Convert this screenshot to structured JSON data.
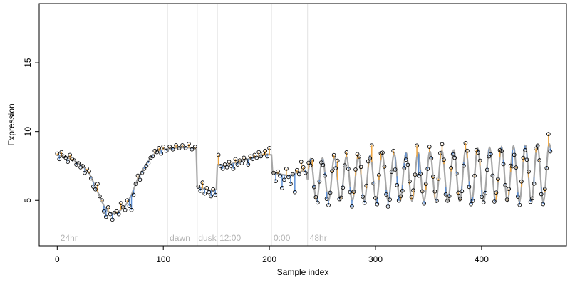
{
  "chart_data": {
    "type": "scatter",
    "xlabel": "Sample index",
    "ylabel": "Expression",
    "xlim": [
      -17,
      480
    ],
    "ylim": [
      1.7,
      19.3
    ],
    "x_ticks": [
      0,
      100,
      200,
      300,
      400
    ],
    "y_ticks": [
      5,
      10,
      15
    ],
    "grid": false,
    "legend": "none",
    "region_boundaries": [
      104,
      132,
      151,
      202,
      236
    ],
    "region_labels": [
      {
        "x": 3,
        "label": "24hr"
      },
      {
        "x": 106,
        "label": "dawn"
      },
      {
        "x": 133,
        "label": "dusk"
      },
      {
        "x": 153,
        "label": "12:00"
      },
      {
        "x": 204,
        "label": "0:00"
      },
      {
        "x": 238,
        "label": "48hr"
      }
    ],
    "fit_curve": [
      [
        0,
        8.3
      ],
      [
        8,
        8.15
      ],
      [
        16,
        7.9
      ],
      [
        24,
        7.5
      ],
      [
        30,
        7.0
      ],
      [
        36,
        6.0
      ],
      [
        40,
        5.3
      ],
      [
        44,
        4.6
      ],
      [
        48,
        4.2
      ],
      [
        52,
        4.05
      ],
      [
        56,
        4.1
      ],
      [
        60,
        4.3
      ],
      [
        65,
        4.7
      ],
      [
        70,
        5.4
      ],
      [
        76,
        6.6
      ],
      [
        82,
        7.4
      ],
      [
        88,
        8.1
      ],
      [
        94,
        8.55
      ],
      [
        100,
        8.7
      ],
      [
        110,
        8.8
      ],
      [
        120,
        8.85
      ],
      [
        128,
        8.8
      ],
      [
        131,
        8.7
      ],
      [
        132,
        6.0
      ],
      [
        136,
        5.9
      ],
      [
        140,
        5.8
      ],
      [
        146,
        5.7
      ],
      [
        150,
        5.8
      ],
      [
        151,
        7.6
      ],
      [
        156,
        7.5
      ],
      [
        162,
        7.6
      ],
      [
        170,
        7.8
      ],
      [
        180,
        8.0
      ],
      [
        190,
        8.2
      ],
      [
        198,
        8.35
      ],
      [
        202,
        8.3
      ],
      [
        203,
        7.0
      ],
      [
        210,
        6.9
      ],
      [
        218,
        6.8
      ],
      [
        226,
        7.0
      ],
      [
        234,
        7.2
      ]
    ],
    "oscillation": {
      "start": 236,
      "end": 465,
      "period": 11.25,
      "center_start": 6.5,
      "center_end": 7.0,
      "amplitude_start": 1.5,
      "amplitude_end": 2.1
    },
    "series": [
      {
        "name": "",
        "points": [
          [
            0,
            8.4
          ],
          [
            2,
            8.0
          ],
          [
            4,
            8.5
          ],
          [
            6,
            8.2
          ],
          [
            8,
            8.1
          ],
          [
            10,
            7.8
          ],
          [
            12,
            8.3
          ],
          [
            14,
            8.0
          ],
          [
            16,
            7.9
          ],
          [
            18,
            7.6
          ],
          [
            20,
            7.7
          ],
          [
            22,
            7.4
          ],
          [
            24,
            7.5
          ],
          [
            26,
            7.0
          ],
          [
            28,
            7.3
          ],
          [
            30,
            7.1
          ],
          [
            32,
            6.6
          ],
          [
            34,
            6.0
          ],
          [
            36,
            5.8
          ],
          [
            38,
            6.2
          ],
          [
            40,
            5.3
          ],
          [
            42,
            5.0
          ],
          [
            44,
            4.2
          ],
          [
            46,
            3.8
          ],
          [
            48,
            4.5
          ],
          [
            50,
            4.0
          ],
          [
            52,
            3.6
          ],
          [
            54,
            4.1
          ],
          [
            56,
            4.2
          ],
          [
            58,
            4.0
          ],
          [
            60,
            4.8
          ],
          [
            62,
            4.5
          ],
          [
            64,
            4.3
          ],
          [
            66,
            5.0
          ],
          [
            68,
            4.6
          ],
          [
            70,
            4.3
          ],
          [
            72,
            5.4
          ],
          [
            74,
            6.2
          ],
          [
            76,
            6.8
          ],
          [
            78,
            6.5
          ],
          [
            80,
            7.0
          ],
          [
            82,
            7.3
          ],
          [
            84,
            7.5
          ],
          [
            86,
            7.7
          ],
          [
            88,
            8.1
          ],
          [
            90,
            8.2
          ],
          [
            92,
            8.6
          ],
          [
            94,
            8.5
          ],
          [
            96,
            8.8
          ],
          [
            98,
            8.4
          ],
          [
            100,
            8.9
          ],
          [
            103,
            8.6
          ],
          [
            106,
            8.9
          ],
          [
            109,
            8.7
          ],
          [
            112,
            9.0
          ],
          [
            115,
            8.8
          ],
          [
            118,
            9.0
          ],
          [
            121,
            8.8
          ],
          [
            124,
            9.1
          ],
          [
            127,
            8.7
          ],
          [
            130,
            8.9
          ],
          [
            133,
            6.0
          ],
          [
            135,
            5.7
          ],
          [
            137,
            6.3
          ],
          [
            139,
            5.5
          ],
          [
            141,
            5.9
          ],
          [
            143,
            5.6
          ],
          [
            145,
            5.3
          ],
          [
            147,
            5.8
          ],
          [
            149,
            5.4
          ],
          [
            152,
            8.3
          ],
          [
            154,
            7.5
          ],
          [
            156,
            7.3
          ],
          [
            158,
            7.6
          ],
          [
            160,
            7.4
          ],
          [
            162,
            7.8
          ],
          [
            164,
            7.5
          ],
          [
            166,
            7.3
          ],
          [
            168,
            8.0
          ],
          [
            170,
            7.6
          ],
          [
            172,
            7.9
          ],
          [
            174,
            7.7
          ],
          [
            176,
            8.1
          ],
          [
            178,
            7.9
          ],
          [
            180,
            7.6
          ],
          [
            182,
            8.2
          ],
          [
            184,
            8.0
          ],
          [
            186,
            8.3
          ],
          [
            188,
            8.1
          ],
          [
            190,
            8.5
          ],
          [
            192,
            8.2
          ],
          [
            194,
            8.4
          ],
          [
            196,
            8.6
          ],
          [
            198,
            8.2
          ],
          [
            200,
            8.8
          ],
          [
            204,
            7.0
          ],
          [
            206,
            6.4
          ],
          [
            208,
            7.1
          ],
          [
            210,
            6.8
          ],
          [
            212,
            5.9
          ],
          [
            214,
            6.5
          ],
          [
            216,
            7.3
          ],
          [
            218,
            6.7
          ],
          [
            220,
            6.2
          ],
          [
            222,
            6.9
          ],
          [
            224,
            5.6
          ],
          [
            226,
            7.2
          ],
          [
            228,
            6.9
          ],
          [
            230,
            7.8
          ],
          [
            232,
            7.4
          ],
          [
            234,
            7.0
          ]
        ]
      }
    ]
  }
}
